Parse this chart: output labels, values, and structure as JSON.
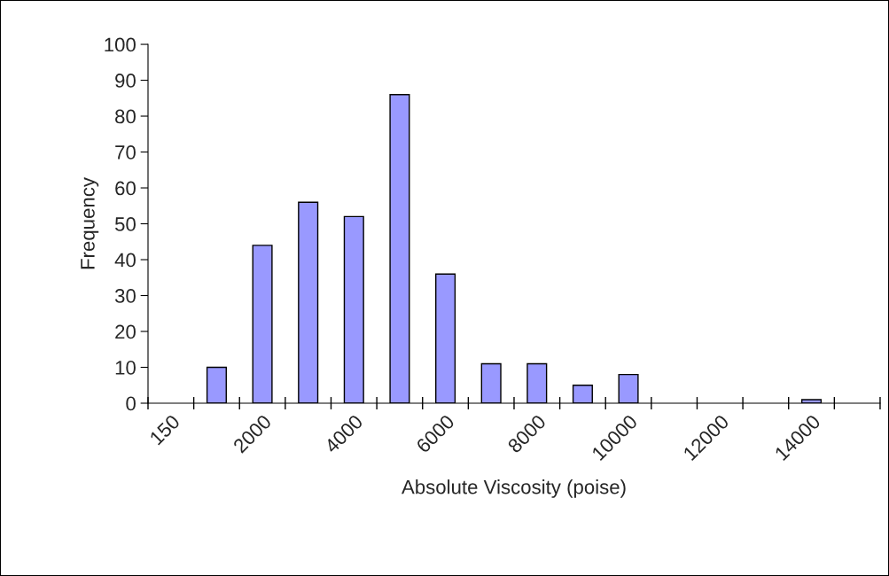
{
  "chart_data": {
    "type": "bar",
    "xlabel": "Absolute Viscosity (poise)",
    "ylabel": "Frequency",
    "categories": [
      "150",
      null,
      "2000",
      null,
      "4000",
      null,
      "6000",
      null,
      "8000",
      null,
      "10000",
      null,
      "12000",
      null,
      "14000",
      null
    ],
    "values": [
      0,
      10,
      44,
      56,
      52,
      86,
      36,
      11,
      11,
      5,
      8,
      0,
      0,
      0,
      1,
      0
    ],
    "color": "#9999ff",
    "ylim": [
      0,
      100
    ],
    "yticks": [
      0,
      10,
      20,
      30,
      40,
      50,
      60,
      70,
      80,
      90,
      100
    ],
    "grid": false,
    "legend": false
  }
}
